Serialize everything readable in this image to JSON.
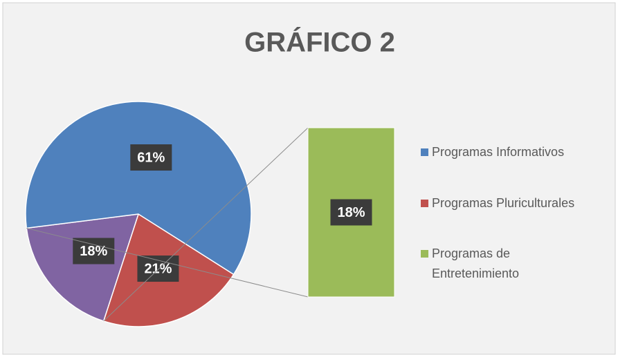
{
  "chart_data": {
    "type": "bar_of_pie",
    "title": "GRÁFICO 2",
    "categories": [
      "Programas Informativos",
      "Programas Pluriculturales",
      "Programas de Entretenimiento"
    ],
    "values": [
      61,
      21,
      18
    ],
    "value_labels": [
      "61%",
      "21%",
      "18%"
    ],
    "colors": [
      "#4f81bd",
      "#c0504d",
      "#9bbb59"
    ],
    "split_color": "#8064a2",
    "legend": "right"
  }
}
